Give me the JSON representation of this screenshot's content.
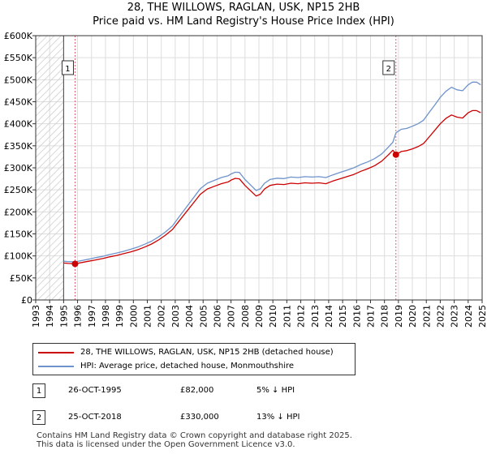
{
  "title": "28, THE WILLOWS, RAGLAN, USK, NP15 2HB",
  "subtitle": "Price paid vs. HM Land Registry's House Price Index (HPI)",
  "colors": {
    "red": "#cc0000",
    "blue": "#6e93cc",
    "hatch": "#cccccc",
    "grid": "#dddddd",
    "vline": "#e06070"
  },
  "chart_data": {
    "type": "line",
    "title": "28, THE WILLOWS, RAGLAN, USK, NP15 2HB",
    "subtitle": "Price paid vs. HM Land Registry's House Price Index (HPI)",
    "xlim": [
      1993,
      2025
    ],
    "ylim": [
      0,
      600000
    ],
    "x_ticks": [
      "1993",
      "1994",
      "1995",
      "1996",
      "1997",
      "1998",
      "1999",
      "2000",
      "2001",
      "2002",
      "2003",
      "2004",
      "2005",
      "2006",
      "2007",
      "2008",
      "2009",
      "2010",
      "2011",
      "2012",
      "2013",
      "2014",
      "2015",
      "2016",
      "2017",
      "2018",
      "2019",
      "2020",
      "2021",
      "2022",
      "2023",
      "2024",
      "2025"
    ],
    "y_ticks": [
      {
        "value": 0,
        "label": "£0"
      },
      {
        "value": 50000,
        "label": "£50K"
      },
      {
        "value": 100000,
        "label": "£100K"
      },
      {
        "value": 150000,
        "label": "£150K"
      },
      {
        "value": 200000,
        "label": "£200K"
      },
      {
        "value": 250000,
        "label": "£250K"
      },
      {
        "value": 300000,
        "label": "£300K"
      },
      {
        "value": 350000,
        "label": "£350K"
      },
      {
        "value": 400000,
        "label": "£400K"
      },
      {
        "value": 450000,
        "label": "£450K"
      },
      {
        "value": 500000,
        "label": "£500K"
      },
      {
        "value": 550000,
        "label": "£550K"
      },
      {
        "value": 600000,
        "label": "£600K"
      }
    ],
    "grid": true,
    "hatched_region": [
      1993,
      1995
    ],
    "series": [
      {
        "name": "28, THE WILLOWS, RAGLAN, USK, NP15 2HB (detached house)",
        "color": "#cc0000",
        "x": [
          1995.0,
          1995.3,
          1995.82,
          1996.3,
          1996.8,
          1997.3,
          1997.8,
          1998.3,
          1998.8,
          1999.3,
          1999.8,
          2000.3,
          2000.8,
          2001.3,
          2001.8,
          2002.3,
          2002.8,
          2003.3,
          2003.8,
          2004.3,
          2004.8,
          2005.3,
          2005.8,
          2006.3,
          2006.8,
          2007.0,
          2007.3,
          2007.6,
          2008.0,
          2008.4,
          2008.8,
          2009.1,
          2009.4,
          2009.8,
          2010.3,
          2010.8,
          2011.3,
          2011.8,
          2012.3,
          2012.8,
          2013.3,
          2013.8,
          2014.3,
          2014.8,
          2015.3,
          2015.8,
          2016.3,
          2016.8,
          2017.3,
          2017.8,
          2018.3,
          2018.6,
          2018.82,
          2019.2,
          2019.6,
          2020.0,
          2020.4,
          2020.8,
          2021.2,
          2021.6,
          2022.0,
          2022.4,
          2022.8,
          2023.2,
          2023.6,
          2024.0,
          2024.3,
          2024.6,
          2024.9
        ],
        "values": [
          84000,
          83000,
          82000,
          85000,
          88000,
          91000,
          94000,
          98000,
          101000,
          105000,
          109000,
          114000,
          120000,
          127000,
          136000,
          147000,
          160000,
          180000,
          200000,
          220000,
          240000,
          252000,
          258000,
          264000,
          268000,
          272000,
          276000,
          275000,
          260000,
          248000,
          236000,
          240000,
          252000,
          260000,
          263000,
          262000,
          265000,
          264000,
          266000,
          265000,
          266000,
          264000,
          270000,
          275000,
          280000,
          285000,
          292000,
          298000,
          305000,
          315000,
          330000,
          340000,
          330000,
          337000,
          339000,
          343000,
          348000,
          355000,
          370000,
          385000,
          400000,
          412000,
          420000,
          415000,
          413000,
          425000,
          430000,
          430000,
          425000
        ]
      },
      {
        "name": "HPI: Average price, detached house, Monmouthshire",
        "color": "#6e93cc",
        "x": [
          1995.0,
          1995.3,
          1995.82,
          1996.3,
          1996.8,
          1997.3,
          1997.8,
          1998.3,
          1998.8,
          1999.3,
          1999.8,
          2000.3,
          2000.8,
          2001.3,
          2001.8,
          2002.3,
          2002.8,
          2003.3,
          2003.8,
          2004.3,
          2004.8,
          2005.3,
          2005.8,
          2006.3,
          2006.8,
          2007.0,
          2007.3,
          2007.6,
          2008.0,
          2008.4,
          2008.8,
          2009.1,
          2009.4,
          2009.8,
          2010.3,
          2010.8,
          2011.3,
          2011.8,
          2012.3,
          2012.8,
          2013.3,
          2013.8,
          2014.3,
          2014.8,
          2015.3,
          2015.8,
          2016.3,
          2016.8,
          2017.3,
          2017.8,
          2018.3,
          2018.6,
          2018.82,
          2019.2,
          2019.6,
          2020.0,
          2020.4,
          2020.8,
          2021.2,
          2021.6,
          2022.0,
          2022.4,
          2022.8,
          2023.2,
          2023.6,
          2024.0,
          2024.3,
          2024.6,
          2024.9
        ],
        "values": [
          88000,
          87000,
          86500,
          89500,
          92500,
          96000,
          99000,
          103000,
          106500,
          110500,
          115000,
          120000,
          126500,
          133500,
          143000,
          154500,
          168000,
          189500,
          210500,
          231500,
          252500,
          265000,
          271500,
          278000,
          282000,
          286000,
          290000,
          289500,
          273500,
          261000,
          248500,
          252500,
          265000,
          273500,
          276500,
          275500,
          279000,
          278000,
          280000,
          279000,
          280000,
          278000,
          284000,
          289500,
          294500,
          300000,
          307500,
          313500,
          321000,
          331500,
          347500,
          358000,
          379500,
          387500,
          389500,
          394500,
          400000,
          408000,
          425500,
          442500,
          460000,
          473500,
          483000,
          477000,
          475000,
          488500,
          494500,
          494500,
          488500
        ]
      }
    ],
    "annotations": [
      {
        "id": "1",
        "x": 1995.82,
        "value": 82000
      },
      {
        "id": "2",
        "x": 2018.82,
        "value": 330000
      }
    ]
  },
  "legend": [
    {
      "label": "28, THE WILLOWS, RAGLAN, USK, NP15 2HB (detached house)",
      "color": "#cc0000"
    },
    {
      "label": "HPI: Average price, detached house, Monmouthshire",
      "color": "#6e93cc"
    }
  ],
  "transactions": [
    {
      "id": "1",
      "date": "26-OCT-1995",
      "price": "£82,000",
      "hpi": "5% ↓ HPI"
    },
    {
      "id": "2",
      "date": "25-OCT-2018",
      "price": "£330,000",
      "hpi": "13% ↓ HPI"
    }
  ],
  "footer": {
    "line1": "Contains HM Land Registry data © Crown copyright and database right 2025.",
    "line2": "This data is licensed under the Open Government Licence v3.0."
  }
}
